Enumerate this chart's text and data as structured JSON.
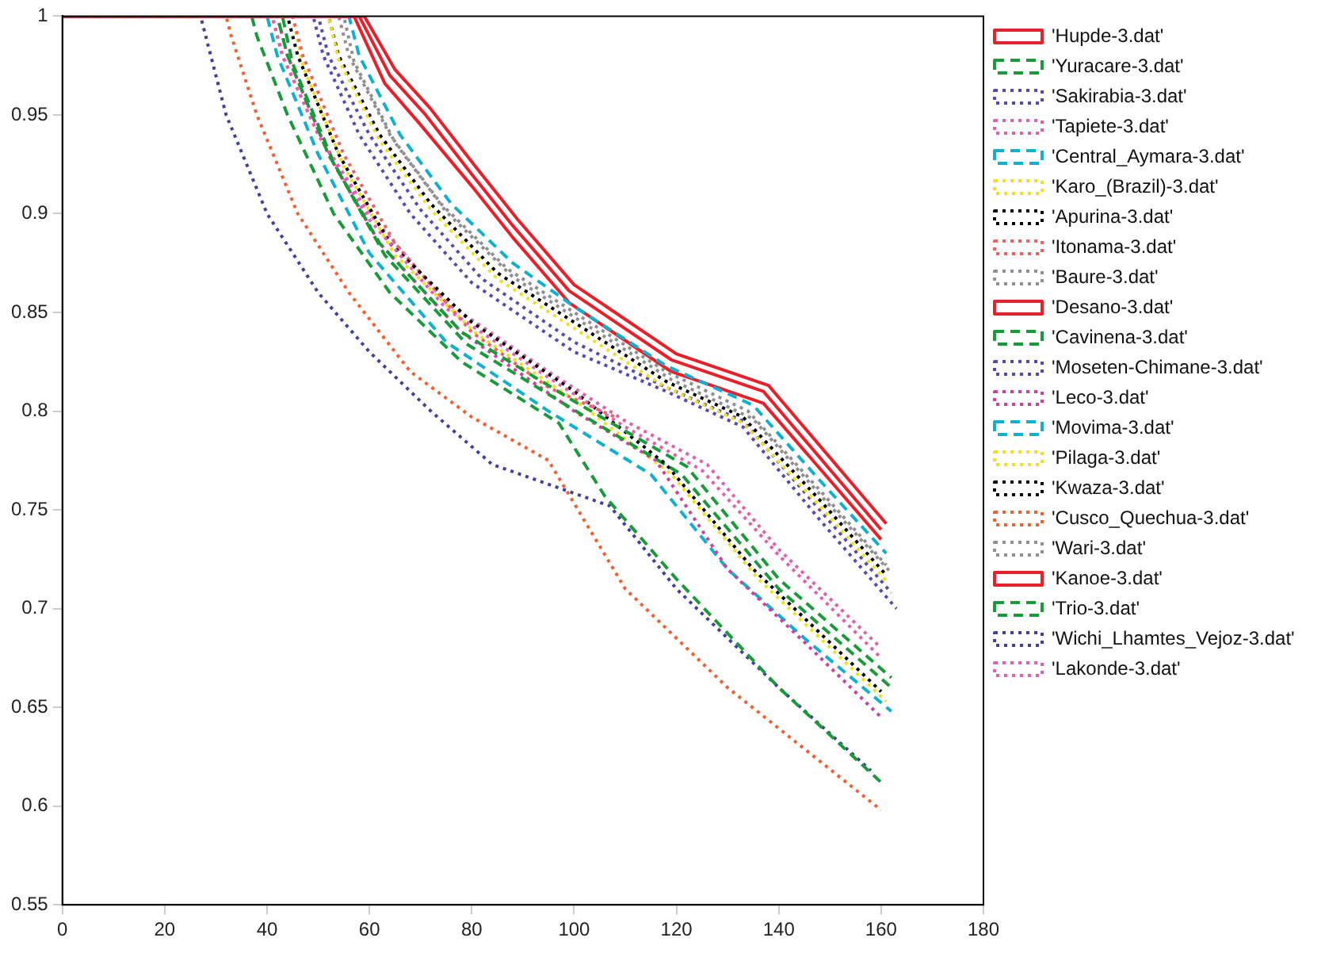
{
  "chart_data": {
    "type": "line",
    "xlim": [
      0,
      180
    ],
    "xticks": [
      0,
      20,
      40,
      60,
      80,
      100,
      120,
      140,
      160,
      180
    ],
    "ylim": [
      0.55,
      1
    ],
    "yticks": [
      0.55,
      0.6,
      0.65,
      0.7,
      0.75,
      0.8,
      0.85,
      0.9,
      0.95,
      1
    ],
    "grid": false,
    "legend": "right",
    "marker": "none",
    "series": [
      {
        "name": "'Hupde-3.dat'",
        "color": "#e8202a",
        "line_style": "solid",
        "x": [
          0,
          58,
          64,
          71,
          80,
          88,
          99,
          119,
          137,
          160
        ],
        "values": [
          1,
          1,
          0.97,
          0.95,
          0.92,
          0.894,
          0.861,
          0.826,
          0.81,
          0.74
        ]
      },
      {
        "name": "'Yuracare-3.dat'",
        "color": "#1a9a3a",
        "line_style": "dashed",
        "x": [
          0,
          42,
          44,
          52,
          62,
          78,
          100,
          122,
          140,
          162
        ],
        "values": [
          1,
          1,
          0.98,
          0.93,
          0.885,
          0.84,
          0.805,
          0.772,
          0.715,
          0.665
        ]
      },
      {
        "name": "'Sakirabia-3.dat'",
        "color": "#5a4ab0",
        "line_style": "dotted",
        "x": [
          0,
          49,
          51,
          58,
          68,
          80,
          100,
          118,
          133,
          148,
          163
        ],
        "values": [
          1,
          1,
          0.98,
          0.94,
          0.9,
          0.865,
          0.83,
          0.81,
          0.792,
          0.745,
          0.7
        ]
      },
      {
        "name": "'Tapiete-3.dat'",
        "color": "#e060b0",
        "line_style": "dotted",
        "x": [
          0,
          41,
          43,
          50,
          60,
          75,
          95,
          110,
          125,
          140,
          160
        ],
        "values": [
          1,
          1,
          0.98,
          0.94,
          0.897,
          0.852,
          0.817,
          0.792,
          0.77,
          0.727,
          0.675
        ]
      },
      {
        "name": "'Central_Aymara-3.dat'",
        "color": "#10b0d0",
        "line_style": "dashed",
        "x": [
          0,
          56,
          58,
          66,
          76,
          88,
          100,
          118,
          135,
          148,
          161
        ],
        "values": [
          1,
          1,
          0.98,
          0.94,
          0.905,
          0.875,
          0.853,
          0.823,
          0.803,
          0.765,
          0.728
        ]
      },
      {
        "name": "'Karo_(Brazil)-3.dat'",
        "color": "#f0e020",
        "line_style": "dotted",
        "x": [
          0,
          52,
          54,
          62,
          72,
          85,
          100,
          118,
          133,
          148,
          161
        ],
        "values": [
          1,
          1,
          0.978,
          0.937,
          0.902,
          0.867,
          0.842,
          0.812,
          0.794,
          0.752,
          0.714
        ]
      },
      {
        "name": "'Apurina-3.dat'",
        "color": "#000000",
        "line_style": "dotted",
        "x": [
          0,
          44,
          46,
          54,
          64,
          80,
          100,
          118,
          135,
          160
        ],
        "values": [
          1,
          1,
          0.98,
          0.93,
          0.885,
          0.845,
          0.81,
          0.773,
          0.72,
          0.658
        ]
      },
      {
        "name": "'Itonama-3.dat'",
        "color": "#f06060",
        "line_style": "dotted",
        "x": [
          0,
          45,
          47,
          55,
          65,
          72,
          80,
          95,
          108
        ],
        "values": [
          1,
          1,
          0.98,
          0.93,
          0.885,
          0.864,
          0.84,
          0.812,
          0.797
        ]
      },
      {
        "name": "'Baure-3.dat'",
        "color": "#909090",
        "line_style": "dotted",
        "x": [
          0,
          54,
          56,
          64,
          74,
          87,
          100,
          118,
          134,
          148,
          161
        ],
        "values": [
          1,
          1,
          0.98,
          0.94,
          0.905,
          0.872,
          0.85,
          0.82,
          0.8,
          0.76,
          0.722
        ]
      },
      {
        "name": "'Desano-3.dat'",
        "color": "#e8202a",
        "line_style": "solid",
        "x": [
          0,
          57,
          63,
          70,
          80,
          88,
          99,
          119,
          137,
          160
        ],
        "values": [
          1,
          1,
          0.966,
          0.945,
          0.914,
          0.888,
          0.855,
          0.82,
          0.804,
          0.735
        ]
      },
      {
        "name": "'Cavinena-3.dat'",
        "color": "#1a9a3a",
        "line_style": "dashed",
        "x": [
          0,
          43,
          45,
          53,
          63,
          79,
          101,
          121,
          140,
          162
        ],
        "values": [
          1,
          1,
          0.976,
          0.926,
          0.879,
          0.834,
          0.799,
          0.768,
          0.71,
          0.66
        ]
      },
      {
        "name": "'Moseten-Chimane-3.dat'",
        "color": "#5a4ab0",
        "line_style": "dotted",
        "x": [
          0,
          50,
          52,
          60,
          70,
          82,
          100,
          118,
          133,
          148,
          162
        ],
        "values": [
          1,
          1,
          0.98,
          0.94,
          0.902,
          0.867,
          0.835,
          0.812,
          0.795,
          0.75,
          0.708
        ]
      },
      {
        "name": "'Leco-3.dat'",
        "color": "#d040a0",
        "line_style": "dotted",
        "x": [
          0,
          42,
          44,
          52,
          62,
          78,
          100,
          116,
          130,
          145,
          160
        ],
        "values": [
          1,
          1,
          0.98,
          0.93,
          0.885,
          0.84,
          0.8,
          0.775,
          0.72,
          0.683,
          0.645
        ]
      },
      {
        "name": "'Movima-3.dat'",
        "color": "#10b0d0",
        "line_style": "dashed",
        "x": [
          0,
          40,
          42,
          50,
          60,
          75,
          95,
          115,
          130,
          145,
          162
        ],
        "values": [
          1,
          1,
          0.98,
          0.93,
          0.88,
          0.835,
          0.8,
          0.768,
          0.72,
          0.685,
          0.648
        ]
      },
      {
        "name": "'Pilaga-3.dat'",
        "color": "#f0e020",
        "line_style": "dotted",
        "x": [
          0,
          45,
          47,
          55,
          65,
          81,
          101,
          119,
          136,
          161
        ],
        "values": [
          1,
          1,
          0.975,
          0.924,
          0.879,
          0.839,
          0.804,
          0.768,
          0.715,
          0.653
        ]
      },
      {
        "name": "'Kwaza-3.dat'",
        "color": "#000000",
        "line_style": "dotted",
        "x": [
          0,
          52,
          54,
          62,
          72,
          85,
          100,
          118,
          133,
          148,
          161
        ],
        "values": [
          1,
          1,
          0.98,
          0.94,
          0.905,
          0.87,
          0.845,
          0.815,
          0.797,
          0.755,
          0.717
        ]
      },
      {
        "name": "'Cusco_Quechua-3.dat'",
        "color": "#f06030",
        "line_style": "dotted",
        "x": [
          0,
          32,
          33,
          38,
          46,
          56,
          68,
          80,
          95,
          110,
          130,
          160
        ],
        "values": [
          1,
          1,
          0.99,
          0.95,
          0.9,
          0.86,
          0.82,
          0.797,
          0.775,
          0.71,
          0.66,
          0.598
        ]
      },
      {
        "name": "'Wari-3.dat'",
        "color": "#909090",
        "line_style": "dotted",
        "x": [
          0,
          55,
          57,
          65,
          75,
          88,
          101,
          119,
          135,
          149,
          162
        ],
        "values": [
          1,
          1,
          0.977,
          0.936,
          0.901,
          0.868,
          0.846,
          0.816,
          0.796,
          0.755,
          0.718
        ]
      },
      {
        "name": "'Kanoe-3.dat'",
        "color": "#e8202a",
        "line_style": "solid",
        "x": [
          0,
          59,
          65,
          72,
          81,
          89,
          100,
          120,
          138,
          161
        ],
        "values": [
          1,
          1,
          0.973,
          0.953,
          0.923,
          0.897,
          0.864,
          0.829,
          0.813,
          0.743
        ]
      },
      {
        "name": "'Trio-3.dat'",
        "color": "#1a9a3a",
        "line_style": "dashed",
        "x": [
          0,
          37,
          38,
          44,
          53,
          64,
          78,
          97,
          106,
          120,
          140,
          160
        ],
        "values": [
          1,
          1,
          0.99,
          0.95,
          0.9,
          0.86,
          0.825,
          0.794,
          0.757,
          0.715,
          0.66,
          0.612
        ]
      },
      {
        "name": "'Wichi_Lhamtes_Vejoz-3.dat'",
        "color": "#4040a0",
        "line_style": "dotted",
        "x": [
          0,
          27,
          28,
          32,
          40,
          50,
          60,
          72,
          84,
          107,
          120,
          140,
          158
        ],
        "values": [
          1,
          1,
          0.99,
          0.95,
          0.9,
          0.86,
          0.83,
          0.8,
          0.773,
          0.752,
          0.71,
          0.66,
          0.618
        ]
      },
      {
        "name": "'Lakonde-3.dat'",
        "color": "#e060b0",
        "line_style": "dotted",
        "x": [
          0,
          41,
          43,
          50,
          60,
          75,
          95,
          110,
          126,
          140,
          160
        ],
        "values": [
          1,
          1,
          0.98,
          0.94,
          0.9,
          0.855,
          0.82,
          0.795,
          0.773,
          0.73,
          0.68
        ]
      }
    ]
  }
}
